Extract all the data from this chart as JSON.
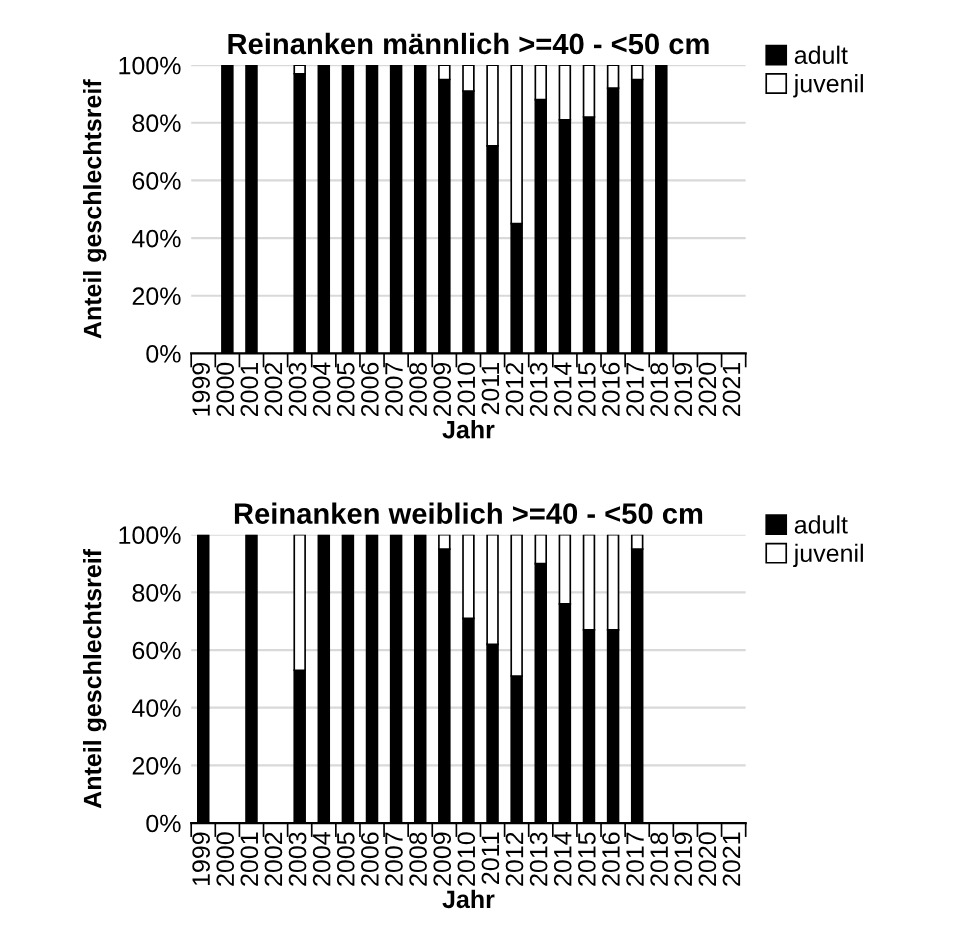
{
  "chart_data": [
    {
      "type": "bar",
      "title": "Reinanken männlich >=40 - <50 cm",
      "xlabel": "Jahr",
      "ylabel": "Anteil geschlechtsreif",
      "stacked": true,
      "legend": "top right",
      "grid": "y",
      "categories": [
        "1999",
        "2000",
        "2001",
        "2002",
        "2003",
        "2004",
        "2005",
        "2006",
        "2007",
        "2008",
        "2009",
        "2010",
        "2011",
        "2012",
        "2013",
        "2014",
        "2015",
        "2016",
        "2017",
        "2018",
        "2019",
        "2020",
        "2021"
      ],
      "series": [
        {
          "name": "adult",
          "color": "#000000",
          "values": [
            null,
            100,
            100,
            null,
            97,
            100,
            100,
            100,
            100,
            100,
            95,
            91,
            72,
            45,
            88,
            81,
            82,
            92,
            95,
            100,
            null,
            null,
            null
          ]
        },
        {
          "name": "juvenil",
          "color": "#ffffff",
          "values": [
            null,
            null,
            null,
            null,
            3,
            null,
            null,
            null,
            null,
            null,
            5,
            9,
            28,
            55,
            12,
            19,
            18,
            8,
            5,
            null,
            null,
            null,
            null
          ]
        }
      ],
      "ylim": [
        0,
        100
      ],
      "yticks": [
        {
          "value": 0,
          "label": "0%"
        },
        {
          "value": 20,
          "label": "20%"
        },
        {
          "value": 40,
          "label": "40%"
        },
        {
          "value": 60,
          "label": "60%"
        },
        {
          "value": 80,
          "label": "80%"
        },
        {
          "value": 100,
          "label": "100%"
        }
      ]
    },
    {
      "type": "bar",
      "title": "Reinanken weiblich >=40 - <50 cm",
      "xlabel": "Jahr",
      "ylabel": "Anteil geschlechtsreif",
      "stacked": true,
      "legend": "top right",
      "grid": "y",
      "categories": [
        "1999",
        "2000",
        "2001",
        "2002",
        "2003",
        "2004",
        "2005",
        "2006",
        "2007",
        "2008",
        "2009",
        "2010",
        "2011",
        "2012",
        "2013",
        "2014",
        "2015",
        "2016",
        "2017",
        "2018",
        "2019",
        "2020",
        "2021"
      ],
      "series": [
        {
          "name": "adult",
          "color": "#000000",
          "values": [
            100,
            null,
            100,
            null,
            53,
            100,
            100,
            100,
            100,
            100,
            95,
            71,
            62,
            51,
            90,
            76,
            67,
            67,
            95,
            null,
            null,
            null,
            null
          ]
        },
        {
          "name": "juvenil",
          "color": "#ffffff",
          "values": [
            null,
            null,
            null,
            null,
            47,
            null,
            null,
            null,
            null,
            null,
            5,
            29,
            38,
            49,
            10,
            24,
            33,
            33,
            5,
            null,
            null,
            null,
            null
          ]
        }
      ],
      "ylim": [
        0,
        100
      ],
      "yticks": [
        {
          "value": 0,
          "label": "0%"
        },
        {
          "value": 20,
          "label": "20%"
        },
        {
          "value": 40,
          "label": "40%"
        },
        {
          "value": 60,
          "label": "60%"
        },
        {
          "value": 80,
          "label": "80%"
        },
        {
          "value": 100,
          "label": "100%"
        }
      ]
    }
  ]
}
